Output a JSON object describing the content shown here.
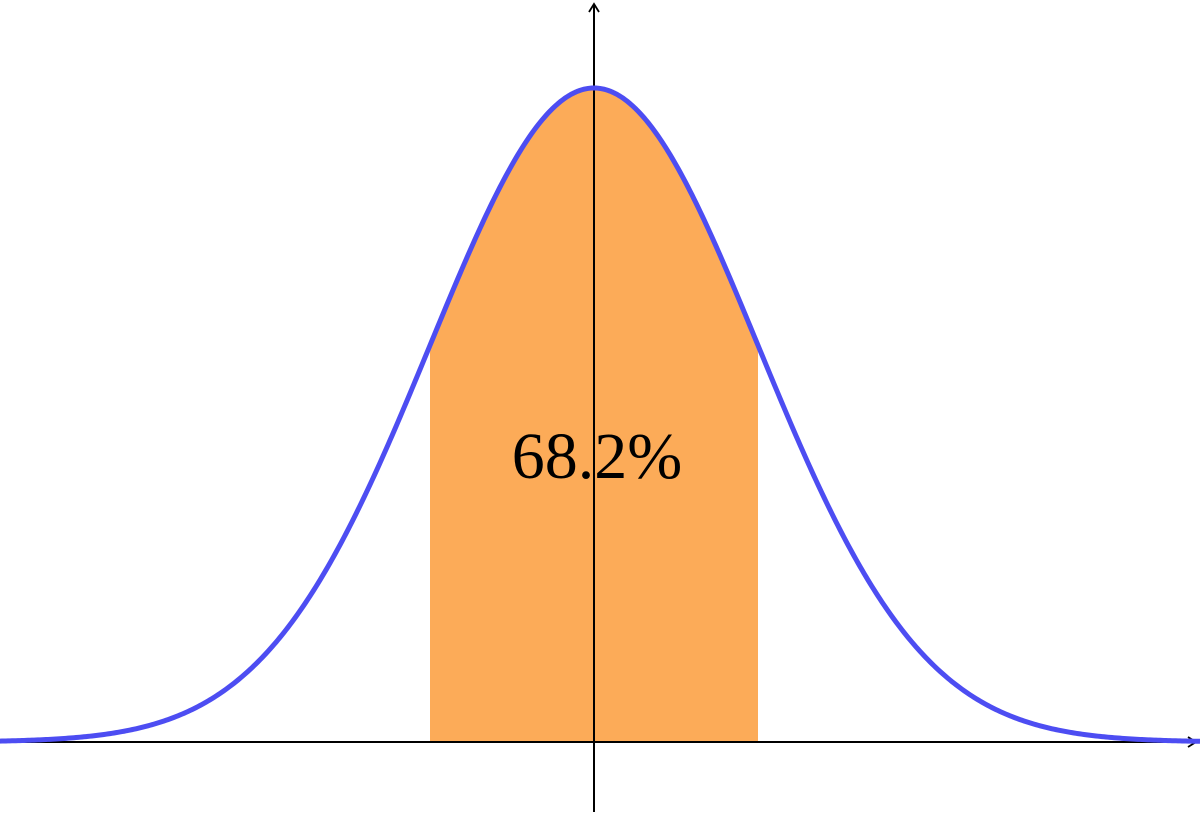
{
  "annotation": "68.2%"
}
